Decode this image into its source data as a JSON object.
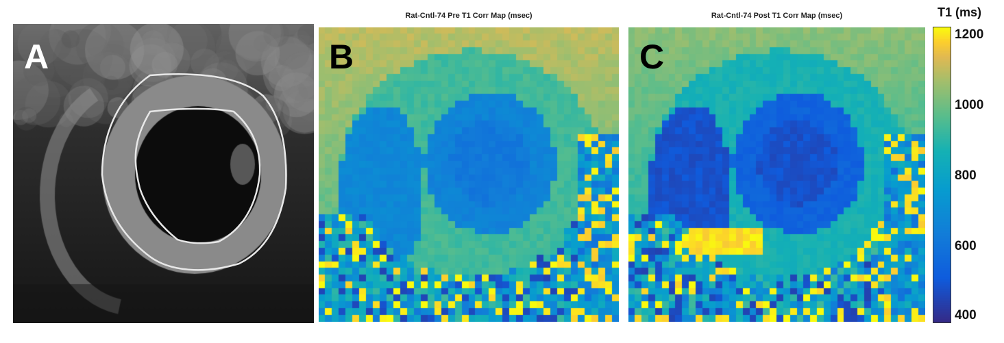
{
  "figure": {
    "panels": [
      {
        "letter": "A",
        "title": "",
        "kind": "grayscale-mri-with-myocardial-contours"
      },
      {
        "letter": "B",
        "title": "Rat-Cntl-74 Pre T1 Corr Map (msec)",
        "kind": "t1-map"
      },
      {
        "letter": "C",
        "title": "Rat-Cntl-74 Post T1 Corr Map (msec)",
        "kind": "t1-map"
      }
    ],
    "colorbar": {
      "title": "T1 (ms)",
      "range": [
        380,
        1230
      ],
      "ticks": [
        "1200",
        "1000",
        "800",
        "600",
        "400"
      ],
      "colormap": "parula"
    }
  }
}
